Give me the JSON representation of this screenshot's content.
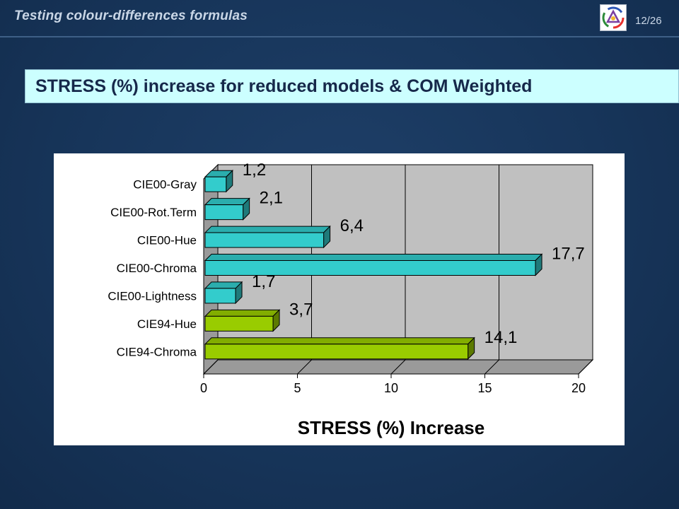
{
  "header": {
    "title": "Testing colour-differences formulas",
    "page_number": "12/26"
  },
  "subtitle": "STRESS (%) increase for reduced models & COM Weighted",
  "colors": {
    "background": "#17355a",
    "subtitle_box": "#ccffff",
    "plot_wall": "#c0c0c0",
    "bar_cyan": "#33cccc",
    "bar_green": "#99cc00"
  },
  "chart_data": {
    "type": "bar",
    "orientation": "horizontal",
    "categories": [
      "CIE00-Gray",
      "CIE00-Rot.Term",
      "CIE00-Hue",
      "CIE00-Chroma",
      "CIE00-Lightness",
      "CIE94-Hue",
      "CIE94-Chroma"
    ],
    "values": [
      1.2,
      2.1,
      6.4,
      17.7,
      1.7,
      3.7,
      14.1
    ],
    "value_labels": [
      "1,2",
      "2,1",
      "6,4",
      "17,7",
      "1,7",
      "3,7",
      "14,1"
    ],
    "bar_colors": [
      "#33cccc",
      "#33cccc",
      "#33cccc",
      "#33cccc",
      "#33cccc",
      "#99cc00",
      "#99cc00"
    ],
    "xlabel": "STRESS (%) Increase",
    "xlim": [
      0,
      20
    ],
    "xticks": [
      "0",
      "5",
      "10",
      "15",
      "20"
    ],
    "grid": true,
    "legend": false,
    "style": "3d"
  }
}
